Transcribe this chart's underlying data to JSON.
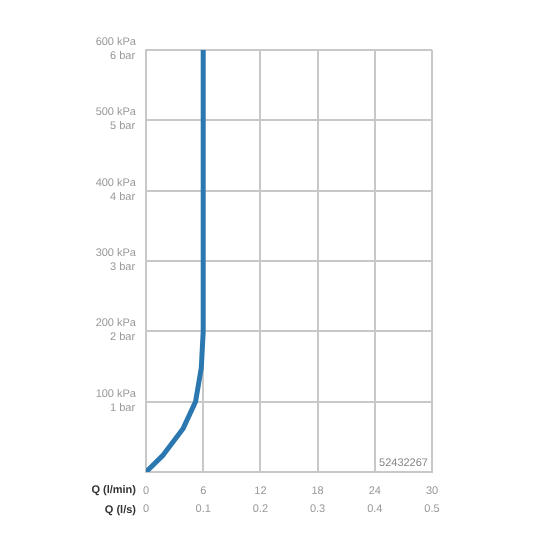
{
  "chart_data": {
    "type": "line",
    "xlabel": "Q (l/min)",
    "x2label": "Q (l/s)",
    "series": [
      {
        "color": "#2b78b0",
        "x": [
          0,
          1.8,
          3.9,
          5.2,
          5.8,
          6,
          6
        ],
        "values": [
          0,
          24,
          62,
          100,
          148,
          200,
          600
        ]
      }
    ],
    "xlim": [
      0,
      30
    ],
    "xticks": [
      0,
      6,
      12,
      18,
      24,
      30
    ],
    "x2lim": [
      0,
      0.5
    ],
    "x2ticks": [
      0,
      0.1,
      0.2,
      0.3,
      0.4,
      0.5
    ],
    "ylim": [
      0,
      600
    ],
    "yticks": [
      {
        "value": 100,
        "label": "100 kPa"
      },
      {
        "value": 200,
        "label": "200 kPa"
      },
      {
        "value": 300,
        "label": "300 kPa"
      },
      {
        "value": 400,
        "label": "400 kPa"
      },
      {
        "value": 500,
        "label": "500 kPa"
      },
      {
        "value": 600,
        "label": "600 kPa"
      }
    ],
    "y2lim": [
      0,
      6
    ],
    "y2ticks": [
      {
        "value": 1,
        "label": "1 bar"
      },
      {
        "value": 2,
        "label": "2 bar"
      },
      {
        "value": 3,
        "label": "3 bar"
      },
      {
        "value": 4,
        "label": "4 bar"
      },
      {
        "value": 5,
        "label": "5 bar"
      },
      {
        "value": 6,
        "label": "6 bar"
      }
    ],
    "grid": true,
    "legend": false,
    "marker": "none",
    "line_style": "solid",
    "annotations": [
      "52432267"
    ]
  }
}
